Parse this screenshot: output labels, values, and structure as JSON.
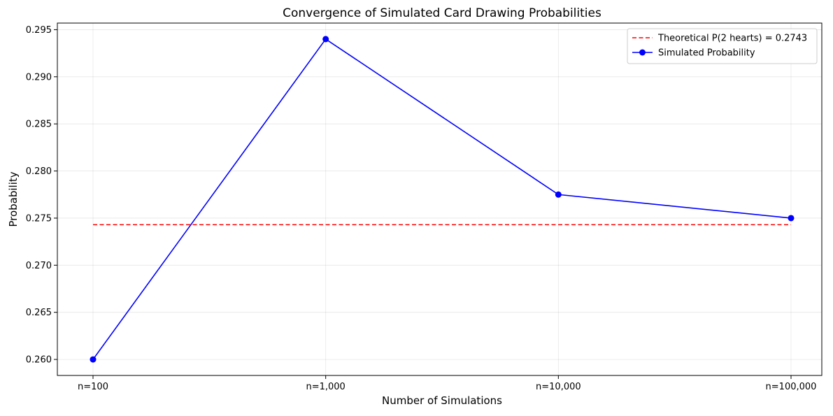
{
  "chart_data": {
    "type": "line",
    "title": "Convergence of Simulated Card Drawing Probabilities",
    "xlabel": "Number of Simulations",
    "ylabel": "Probability",
    "categories": [
      "n=100",
      "n=1,000",
      "n=10,000",
      "n=100,000"
    ],
    "series": [
      {
        "name": "Simulated Probability",
        "values": [
          0.26,
          0.294,
          0.2775,
          0.275
        ],
        "color": "#0000ff",
        "marker": "circle"
      }
    ],
    "reference_lines": [
      {
        "name": "Theoretical P(2 hearts) = 0.2743",
        "value": 0.2743,
        "color": "#ff0000",
        "style": "dashed"
      }
    ],
    "ylim": [
      0.2583,
      0.2957
    ],
    "yticks": [
      0.26,
      0.265,
      0.27,
      0.275,
      0.28,
      0.285,
      0.29,
      0.295
    ],
    "ytick_labels": [
      "0.260",
      "0.265",
      "0.270",
      "0.275",
      "0.280",
      "0.285",
      "0.290",
      "0.295"
    ],
    "grid": true,
    "legend_position": "top-right"
  }
}
